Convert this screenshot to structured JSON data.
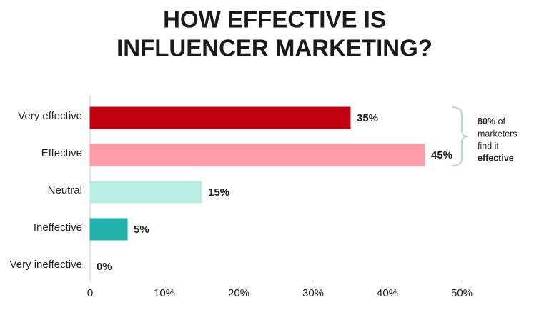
{
  "chart_data": {
    "type": "hbar",
    "title": [
      "HOW EFFECTIVE IS",
      "INFLUENCER MARKETING?"
    ],
    "categories": [
      "Very effective",
      "Effective",
      "Neutral",
      "Ineffective",
      "Very ineffective"
    ],
    "values": [
      35,
      45,
      15,
      5,
      0
    ],
    "value_labels": [
      "35%",
      "45%",
      "15%",
      "5%",
      "0%"
    ],
    "colors": [
      "#c00010",
      "#ff9ba3",
      "#b6eee2",
      "#22b3ac",
      "#888888"
    ],
    "xlim": [
      0,
      50
    ],
    "xticks": [
      0,
      {
        "value": 10,
        "label": "10%"
      },
      {
        "value": 20,
        "label": "20%"
      },
      {
        "value": 30,
        "label": "30%"
      },
      {
        "value": 40,
        "label": "40%"
      },
      {
        "value": 50,
        "label": "50%"
      }
    ],
    "annotation": [
      "80%",
      "of",
      "marketers",
      "find it",
      "effective"
    ]
  }
}
